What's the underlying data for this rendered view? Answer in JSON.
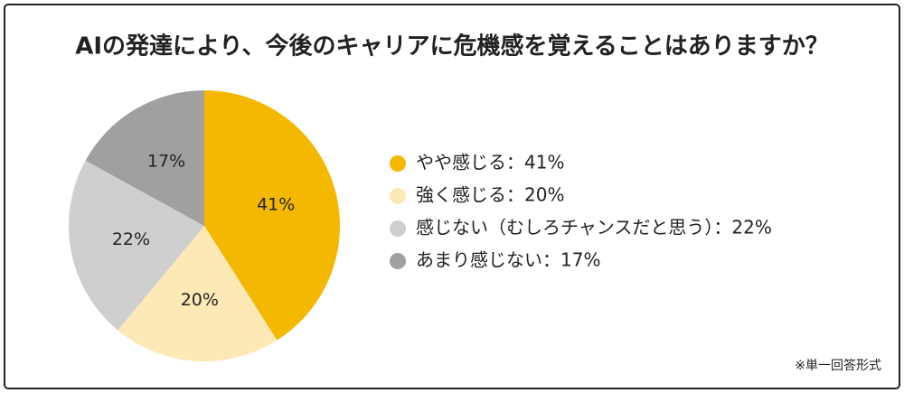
{
  "chart_data": {
    "type": "pie",
    "title": "AIの発達により、今後のキャリアに危機感を覚えることはありますか？",
    "categories": [
      "やや感じる：41%",
      "強く感じる：20%",
      "感じない（むしろチャンスだと思う）：22%",
      "あまり感じない：17%"
    ],
    "values": [
      41,
      20,
      22,
      17
    ],
    "value_labels": [
      "41%",
      "20%",
      "22%",
      "17%"
    ],
    "colors": [
      "#f5b800",
      "#fde9b5",
      "#cfcfcf",
      "#a0a0a0"
    ],
    "legend": "right",
    "annotation": "※単一回答形式"
  }
}
